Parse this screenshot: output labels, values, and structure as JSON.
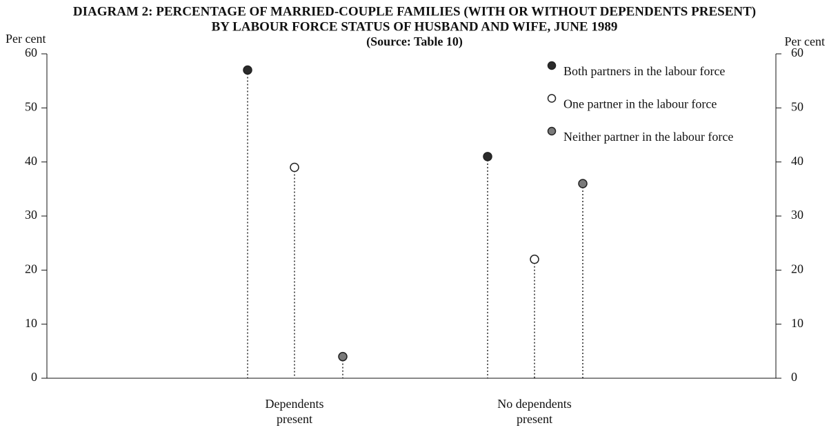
{
  "chart_data": {
    "type": "dot",
    "title": [
      "DIAGRAM 2: PERCENTAGE OF MARRIED-COUPLE FAMILIES (WITH OR WITHOUT DEPENDENTS PRESENT)",
      "BY LABOUR FORCE STATUS OF HUSBAND AND WIFE, JUNE 1989"
    ],
    "subtitle": "(Source: Table 10)",
    "ylabel": "Per cent",
    "y2label": "Per cent",
    "categories": [
      "Dependents present",
      "No dependents present"
    ],
    "series": [
      {
        "name": "Both partners in the labour force",
        "color": "#2b2b2b",
        "values": [
          57,
          41
        ]
      },
      {
        "name": "One partner in the labour force",
        "color": "#ffffff",
        "values": [
          39,
          22
        ]
      },
      {
        "name": "Neither partner in the labour force",
        "color": "#7a7a7a",
        "values": [
          4,
          36
        ]
      }
    ],
    "ylim": [
      0,
      60
    ],
    "yticks": [
      0,
      10,
      20,
      30,
      40,
      50,
      60
    ],
    "y2lim": [
      0,
      60
    ],
    "y2ticks": [
      0,
      10,
      20,
      30,
      40,
      50,
      60
    ],
    "legend": "top-right"
  }
}
